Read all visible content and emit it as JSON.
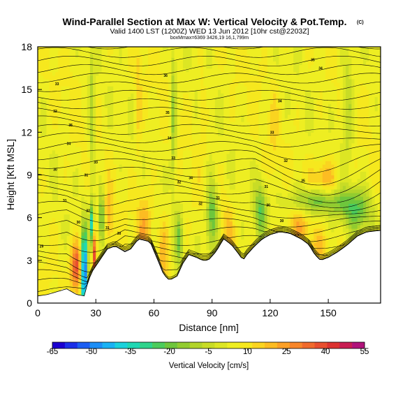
{
  "chart_data": {
    "type": "heatmap",
    "title": "Wind-Parallel Section at Max W: Vertical Velocity & Pot.Temp.",
    "title_mark": "(C)",
    "subtitle": "Valid 1400 LST (1200Z) WED 13 Jun 2012 [10hr cst@2203Z]",
    "caption": "boxMmax=6369 3426,19 16,1,799m",
    "xlabel": "Distance [nm]",
    "ylabel": "Height [Kft MSL]",
    "xlim": [
      0,
      177
    ],
    "ylim": [
      0,
      18
    ],
    "x_ticks": [
      0,
      30,
      60,
      90,
      120,
      150
    ],
    "y_ticks": [
      0,
      3,
      6,
      9,
      12,
      15,
      18
    ],
    "colorbar": {
      "label": "Vertical Velocity [cm/s]",
      "tick_labels": [
        "-65",
        "-50",
        "-35",
        "-20",
        "-5",
        "10",
        "25",
        "40",
        "55"
      ],
      "tick_values": [
        -65,
        -50,
        -35,
        -20,
        -5,
        10,
        25,
        40,
        55
      ],
      "levels": [
        -65,
        -60,
        -55,
        -50,
        -45,
        -40,
        -35,
        -30,
        -25,
        -20,
        -15,
        -10,
        -5,
        0,
        5,
        10,
        15,
        20,
        25,
        30,
        35,
        40,
        45,
        50,
        55
      ],
      "colors": [
        "#1b00d0",
        "#1b2fe8",
        "#1c5ef2",
        "#1c8ef6",
        "#19b2f4",
        "#1ad2dc",
        "#1fd8b4",
        "#2fd48c",
        "#4bcc5c",
        "#6ec63c",
        "#92cc30",
        "#b2d42a",
        "#c8dc26",
        "#dce624",
        "#eeee22",
        "#f6e81e",
        "#fad420",
        "#fcbc22",
        "#fca026",
        "#f8862a",
        "#f06a2c",
        "#e84e2e",
        "#dc3230",
        "#c81c52",
        "#b0127a"
      ]
    },
    "terrain_kft": [
      [
        0,
        0.5
      ],
      [
        5,
        0.6
      ],
      [
        10,
        0.8
      ],
      [
        15,
        1.0
      ],
      [
        20,
        0.6
      ],
      [
        24,
        0.5
      ],
      [
        26,
        1.5
      ],
      [
        28,
        2.2
      ],
      [
        32,
        3.0
      ],
      [
        36,
        3.8
      ],
      [
        40,
        4.0
      ],
      [
        45,
        3.6
      ],
      [
        48,
        3.8
      ],
      [
        52,
        4.5
      ],
      [
        58,
        4.3
      ],
      [
        62,
        3.0
      ],
      [
        65,
        2.0
      ],
      [
        68,
        1.6
      ],
      [
        72,
        1.9
      ],
      [
        75,
        2.8
      ],
      [
        78,
        3.4
      ],
      [
        82,
        3.2
      ],
      [
        85,
        3.0
      ],
      [
        88,
        3.0
      ],
      [
        92,
        3.6
      ],
      [
        96,
        4.5
      ],
      [
        100,
        4.1
      ],
      [
        104,
        3.4
      ],
      [
        106,
        3.0
      ],
      [
        108,
        3.4
      ],
      [
        112,
        4.0
      ],
      [
        116,
        4.5
      ],
      [
        120,
        4.8
      ],
      [
        125,
        5.0
      ],
      [
        130,
        4.9
      ],
      [
        136,
        4.5
      ],
      [
        140,
        4.1
      ],
      [
        143,
        3.4
      ],
      [
        146,
        3.0
      ],
      [
        150,
        3.2
      ],
      [
        155,
        3.6
      ],
      [
        160,
        4.1
      ],
      [
        165,
        4.7
      ],
      [
        170,
        5.0
      ],
      [
        177,
        5.1
      ]
    ],
    "theta_contour_labels": [
      {
        "x": 2,
        "y": 3.9,
        "label": "29"
      },
      {
        "x": 9,
        "y": 9.3,
        "label": "30"
      },
      {
        "x": 9,
        "y": 13.4,
        "label": "32"
      },
      {
        "x": 10,
        "y": 15.3,
        "label": "33"
      },
      {
        "x": 14,
        "y": 7.1,
        "label": "31"
      },
      {
        "x": 16,
        "y": 11.1,
        "label": "34"
      },
      {
        "x": 17,
        "y": 12.4,
        "label": "35"
      },
      {
        "x": 21,
        "y": 5.6,
        "label": "30"
      },
      {
        "x": 25,
        "y": 8.9,
        "label": "31"
      },
      {
        "x": 26,
        "y": 6.4,
        "label": "32"
      },
      {
        "x": 30,
        "y": 9.8,
        "label": "33"
      },
      {
        "x": 36,
        "y": 5.2,
        "label": "31"
      },
      {
        "x": 42,
        "y": 4.8,
        "label": "30"
      },
      {
        "x": 66,
        "y": 15.9,
        "label": "36"
      },
      {
        "x": 67,
        "y": 13.3,
        "label": "35"
      },
      {
        "x": 68,
        "y": 11.5,
        "label": "34"
      },
      {
        "x": 70,
        "y": 10.1,
        "label": "33"
      },
      {
        "x": 73,
        "y": 8.4,
        "label": "32"
      },
      {
        "x": 79,
        "y": 8.7,
        "label": "34"
      },
      {
        "x": 84,
        "y": 6.9,
        "label": "32"
      },
      {
        "x": 93,
        "y": 7.3,
        "label": "31"
      },
      {
        "x": 118,
        "y": 8.1,
        "label": "31"
      },
      {
        "x": 119,
        "y": 6.8,
        "label": "30"
      },
      {
        "x": 121,
        "y": 11.9,
        "label": "33"
      },
      {
        "x": 125,
        "y": 14.1,
        "label": "34"
      },
      {
        "x": 126,
        "y": 5.7,
        "label": "30"
      },
      {
        "x": 128,
        "y": 9.9,
        "label": "32"
      },
      {
        "x": 137,
        "y": 8.5,
        "label": "35"
      },
      {
        "x": 142,
        "y": 17.0,
        "label": "35"
      },
      {
        "x": 146,
        "y": 16.4,
        "label": "34"
      }
    ],
    "w_hotspots": [
      {
        "x": 24,
        "y": 2.0,
        "w": -65,
        "rx": 1.5,
        "ry": 3.2
      },
      {
        "x": 20,
        "y": 2.5,
        "w": 40,
        "rx": 3.0,
        "ry": 1.8
      },
      {
        "x": 29,
        "y": 3.5,
        "w": 45,
        "rx": 1.0,
        "ry": 2.0
      },
      {
        "x": 28,
        "y": 5.5,
        "w": -35,
        "rx": 1.2,
        "ry": 1.5
      },
      {
        "x": 33,
        "y": 6.0,
        "w": -30,
        "rx": 1.2,
        "ry": 2.0
      },
      {
        "x": 37,
        "y": 6.0,
        "w": 20,
        "rx": 2.0,
        "ry": 2.0
      },
      {
        "x": 55,
        "y": 5.5,
        "w": 22,
        "rx": 4.0,
        "ry": 2.5
      },
      {
        "x": 65,
        "y": 3.5,
        "w": 20,
        "rx": 3.0,
        "ry": 2.5
      },
      {
        "x": 73,
        "y": 4.5,
        "w": -15,
        "rx": 2.0,
        "ry": 2.0
      },
      {
        "x": 90,
        "y": 6.0,
        "w": -25,
        "rx": 3.0,
        "ry": 2.5
      },
      {
        "x": 98,
        "y": 5.0,
        "w": 18,
        "rx": 3.0,
        "ry": 2.0
      },
      {
        "x": 115,
        "y": 6.5,
        "w": -20,
        "rx": 3.0,
        "ry": 2.0
      },
      {
        "x": 135,
        "y": 5.5,
        "w": 20,
        "rx": 6.0,
        "ry": 1.5
      },
      {
        "x": 148,
        "y": 8.5,
        "w": 25,
        "rx": 7.0,
        "ry": 1.5
      },
      {
        "x": 145,
        "y": 7.2,
        "w": -25,
        "rx": 15.0,
        "ry": 1.0
      },
      {
        "x": 165,
        "y": 6.5,
        "w": -18,
        "rx": 8.0,
        "ry": 1.5
      },
      {
        "x": 145,
        "y": 4.0,
        "w": 15,
        "rx": 4.0,
        "ry": 1.0
      },
      {
        "x": 28,
        "y": 13.0,
        "w": -12,
        "rx": 1.5,
        "ry": 5.0
      },
      {
        "x": 52,
        "y": 14.0,
        "w": 16,
        "rx": 1.5,
        "ry": 4.0
      },
      {
        "x": 70,
        "y": 13.0,
        "w": -15,
        "rx": 1.5,
        "ry": 5.0
      },
      {
        "x": 85,
        "y": 14.0,
        "w": 14,
        "rx": 1.5,
        "ry": 4.0
      },
      {
        "x": 122,
        "y": 12.0,
        "w": 12,
        "rx": 2.0,
        "ry": 4.0
      },
      {
        "x": 160,
        "y": 14.0,
        "w": -10,
        "rx": 3.0,
        "ry": 4.0
      }
    ]
  }
}
